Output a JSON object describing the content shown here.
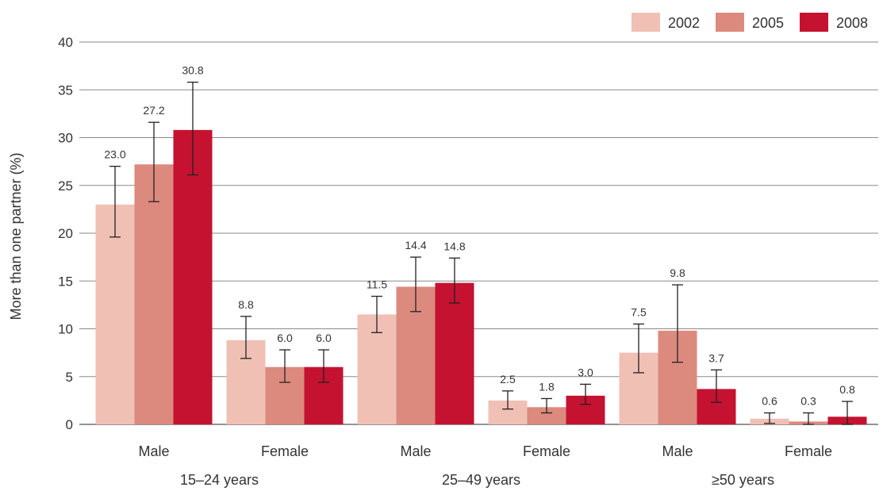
{
  "chart_data": {
    "type": "bar",
    "ylabel": "More than one partner (%)",
    "ylim": [
      0,
      40
    ],
    "yticks": [
      0,
      5,
      10,
      15,
      20,
      25,
      30,
      35,
      40
    ],
    "grid": true,
    "legend_position": "top-right",
    "categories": [
      "Male",
      "Female",
      "Male",
      "Female",
      "Male",
      "Female"
    ],
    "groups": [
      {
        "label": "15–24 years",
        "categories": [
          0,
          1
        ]
      },
      {
        "label": "25–49 years",
        "categories": [
          2,
          3
        ]
      },
      {
        "label": "≥50 years",
        "categories": [
          4,
          5
        ]
      }
    ],
    "series": [
      {
        "name": "2002",
        "color": "#f0c0b5",
        "values": [
          23.0,
          8.8,
          11.5,
          2.5,
          7.5,
          0.6
        ],
        "labels": [
          "23.0",
          "8.8",
          "11.5",
          "2.5",
          "7.5",
          "0.6"
        ],
        "err_low": [
          19.6,
          6.9,
          9.6,
          1.6,
          5.4,
          0.1
        ],
        "err_high": [
          27.0,
          11.3,
          13.4,
          3.5,
          10.5,
          1.2
        ]
      },
      {
        "name": "2005",
        "color": "#dc8a7e",
        "values": [
          27.2,
          6.0,
          14.4,
          1.8,
          9.8,
          0.3
        ],
        "labels": [
          "27.2",
          "6.0",
          "14.4",
          "1.8",
          "9.8",
          "0.3"
        ],
        "err_low": [
          23.3,
          4.4,
          11.8,
          1.2,
          6.5,
          0.0
        ],
        "err_high": [
          31.6,
          7.8,
          17.5,
          2.7,
          14.6,
          1.2
        ]
      },
      {
        "name": "2008",
        "color": "#c41230",
        "values": [
          30.8,
          6.0,
          14.8,
          3.0,
          3.7,
          0.8
        ],
        "labels": [
          "30.8",
          "6.0",
          "14.8",
          "3.0",
          "3.7",
          "0.8"
        ],
        "err_low": [
          26.1,
          4.4,
          12.7,
          2.1,
          2.3,
          0.0
        ],
        "err_high": [
          35.8,
          7.8,
          17.4,
          4.2,
          5.7,
          2.4
        ]
      }
    ]
  }
}
